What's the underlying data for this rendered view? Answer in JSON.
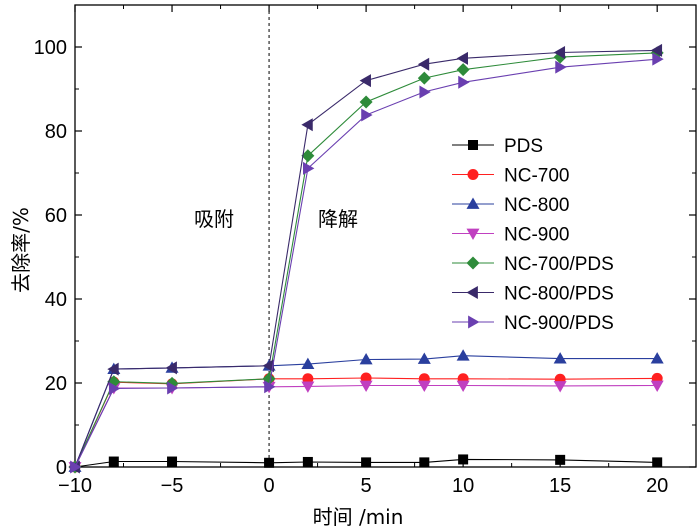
{
  "chart_data": {
    "type": "line",
    "title": "",
    "xlabel": "时间 /min",
    "ylabel": "去除率/%",
    "xlim": [
      -10,
      22
    ],
    "ylim": [
      0,
      110
    ],
    "xticks": [
      -10,
      -5,
      0,
      5,
      10,
      15,
      20
    ],
    "yticks": [
      0,
      20,
      40,
      60,
      80,
      100
    ],
    "xtick_labels": [
      "−10",
      "−5",
      "0",
      "5",
      "10",
      "15",
      "20"
    ],
    "ytick_labels": [
      "0",
      "20",
      "40",
      "60",
      "80",
      "100"
    ],
    "grid": false,
    "legend_position": "right",
    "annotations": [
      "吸附",
      "降解"
    ],
    "divider_x": 0,
    "series": [
      {
        "name": "PDS",
        "color": "#000000",
        "marker": "square",
        "x": [
          -10,
          -8,
          -5,
          0,
          2,
          5,
          8,
          10,
          15,
          20
        ],
        "y": [
          0,
          1.3,
          1.3,
          1.0,
          1.2,
          1.1,
          1.1,
          1.8,
          1.7,
          1.1
        ]
      },
      {
        "name": "NC-700",
        "color": "#ff2020",
        "marker": "circle",
        "x": [
          -10,
          -8,
          -5,
          0,
          2,
          5,
          8,
          10,
          15,
          20
        ],
        "y": [
          0,
          20.2,
          19.8,
          21.0,
          21.0,
          21.2,
          21.0,
          21.0,
          20.9,
          21.1
        ]
      },
      {
        "name": "NC-800",
        "color": "#2a3f9e",
        "marker": "triangle-up",
        "x": [
          -10,
          -8,
          -5,
          0,
          2,
          5,
          8,
          10,
          15,
          20
        ],
        "y": [
          0,
          23.3,
          23.6,
          24.1,
          24.5,
          25.6,
          25.7,
          26.5,
          25.8,
          25.8
        ]
      },
      {
        "name": "NC-900",
        "color": "#c040c0",
        "marker": "triangle-down",
        "x": [
          -10,
          -8,
          -5,
          0,
          2,
          5,
          8,
          10,
          15,
          20
        ],
        "y": [
          0,
          18.8,
          18.8,
          19.1,
          19.2,
          19.4,
          19.4,
          19.4,
          19.3,
          19.4
        ]
      },
      {
        "name": "NC-700/PDS",
        "color": "#2e8b3a",
        "marker": "diamond",
        "x": [
          -10,
          -8,
          -5,
          0,
          2,
          5,
          8,
          10,
          15,
          20
        ],
        "y": [
          0,
          20.3,
          19.9,
          21.0,
          74.1,
          86.9,
          92.6,
          94.6,
          97.6,
          98.6
        ]
      },
      {
        "name": "NC-800/PDS",
        "color": "#3a2a6a",
        "marker": "triangle-left",
        "x": [
          -10,
          -8,
          -5,
          0,
          2,
          5,
          8,
          10,
          15,
          20
        ],
        "y": [
          0,
          23.3,
          23.6,
          24.1,
          81.5,
          92.0,
          95.9,
          97.3,
          98.7,
          99.2
        ]
      },
      {
        "name": "NC-900/PDS",
        "color": "#6a3fb0",
        "marker": "triangle-right",
        "x": [
          -10,
          -8,
          -5,
          0,
          2,
          5,
          8,
          10,
          15,
          20
        ],
        "y": [
          0,
          18.7,
          18.8,
          19.1,
          71.1,
          83.8,
          89.3,
          91.6,
          95.2,
          97.1
        ]
      }
    ]
  }
}
